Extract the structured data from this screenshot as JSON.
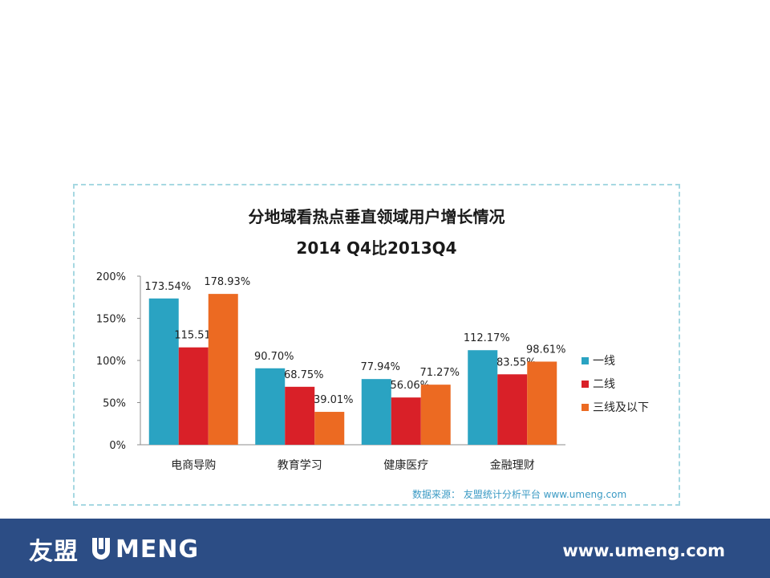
{
  "chart_data": {
    "type": "bar",
    "title": "分地域看热点垂直领域用户增长情况",
    "subtitle": "2014 Q4比2013Q4",
    "categories": [
      "电商导购",
      "教育学习",
      "健康医疗",
      "金融理财"
    ],
    "series": [
      {
        "name": "一线",
        "color": "#2aa3c2",
        "values": [
          173.54,
          90.7,
          77.94,
          112.17
        ],
        "labels": [
          "173.54%",
          "90.70%",
          "77.94%",
          "112.17%"
        ]
      },
      {
        "name": "二线",
        "color": "#d92028",
        "values": [
          115.51,
          68.75,
          56.06,
          83.55
        ],
        "labels": [
          "115.51%",
          "68.75%",
          "56.06%",
          "83.55%"
        ]
      },
      {
        "name": "三线及以下",
        "color": "#ec6a22",
        "values": [
          178.93,
          39.01,
          71.27,
          98.61
        ],
        "labels": [
          "178.93%",
          "39.01%",
          "71.27%",
          "98.61%"
        ]
      }
    ],
    "ylim": [
      0,
      200
    ],
    "yticks": [
      0,
      50,
      100,
      150,
      200
    ],
    "ytick_labels": [
      "0%",
      "50%",
      "100%",
      "150%",
      "200%"
    ],
    "legend_position": "right",
    "grid": false
  },
  "source_text": "数据来源： 友盟统计分析平台 www.umeng.com",
  "footer": {
    "logo_cn": "友盟",
    "logo_en": "MENG",
    "url": "www.umeng.com"
  }
}
